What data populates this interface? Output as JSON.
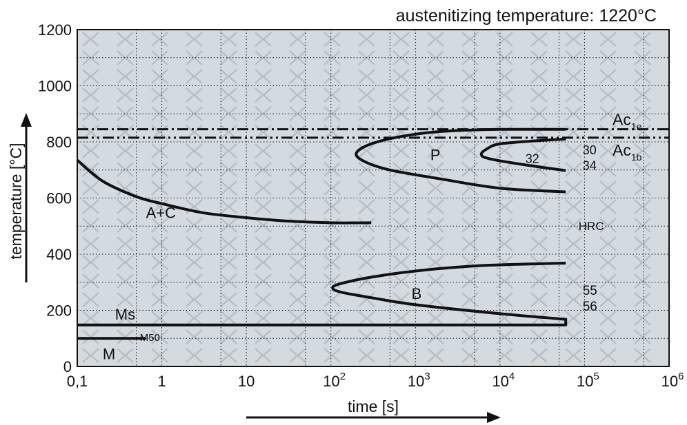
{
  "chart_data": {
    "type": "line",
    "title": "austenitizing temperature: 1220°C",
    "xlabel": "time [s]",
    "ylabel": "temperature [°C]",
    "xscale": "log",
    "xlim": [
      0.1,
      1000000
    ],
    "ylim": [
      0,
      1200
    ],
    "grid": true,
    "x_ticks": [
      {
        "value": 0.1,
        "label": "0,1"
      },
      {
        "value": 1,
        "label": "1"
      },
      {
        "value": 10,
        "label": "10"
      },
      {
        "value": 100,
        "base": "10",
        "exp": "2"
      },
      {
        "value": 1000,
        "base": "10",
        "exp": "3"
      },
      {
        "value": 10000,
        "base": "10",
        "exp": "4"
      },
      {
        "value": 100000,
        "base": "10",
        "exp": "5"
      },
      {
        "value": 1000000,
        "base": "10",
        "exp": "6"
      }
    ],
    "y_ticks": [
      "0",
      "200",
      "400",
      "600",
      "800",
      "1000",
      "1200"
    ],
    "reference_lines": [
      {
        "label_main": "Ac",
        "label_sub": "1e",
        "y": 845
      },
      {
        "label_main": "Ac",
        "label_sub": "1b",
        "y": 815
      }
    ],
    "curves": [
      {
        "points": [
          [
            0.1,
            735
          ],
          [
            0.2,
            660
          ],
          [
            0.5,
            605
          ],
          [
            1,
            580
          ],
          [
            3,
            548
          ],
          [
            10,
            530
          ],
          [
            30,
            518
          ],
          [
            100,
            512
          ],
          [
            300,
            512
          ]
        ]
      },
      {
        "points": [
          [
            60000,
            845
          ],
          [
            10000,
            845
          ],
          [
            2000,
            837
          ],
          [
            700,
            820
          ],
          [
            300,
            793
          ],
          [
            200,
            760
          ],
          [
            250,
            730
          ],
          [
            500,
            700
          ],
          [
            2000,
            668
          ],
          [
            10000,
            635
          ],
          [
            60000,
            622
          ]
        ]
      },
      {
        "points": [
          [
            60000,
            810
          ],
          [
            30000,
            805
          ],
          [
            10000,
            793
          ],
          [
            7000,
            775
          ],
          [
            6000,
            755
          ],
          [
            7500,
            740
          ],
          [
            20000,
            718
          ],
          [
            60000,
            698
          ]
        ]
      },
      {
        "points": [
          [
            60000,
            368
          ],
          [
            30000,
            366
          ],
          [
            5000,
            358
          ],
          [
            1000,
            340
          ],
          [
            300,
            318
          ],
          [
            130,
            295
          ],
          [
            105,
            280
          ],
          [
            130,
            265
          ],
          [
            300,
            245
          ],
          [
            1000,
            220
          ],
          [
            10000,
            188
          ],
          [
            60000,
            168
          ]
        ]
      },
      {
        "points": [
          [
            0.1,
            148
          ],
          [
            60000,
            148
          ],
          [
            60000,
            172
          ]
        ]
      },
      {
        "points": [
          [
            0.1,
            100
          ],
          [
            0.65,
            100
          ]
        ]
      }
    ],
    "annotations": [
      {
        "text": "A+C",
        "x": 0.65,
        "y": 548
      },
      {
        "text": "P",
        "x": 1500,
        "y": 755
      },
      {
        "text": "B",
        "x": 900,
        "y": 260
      },
      {
        "text": "Ms",
        "x": 0.28,
        "y": 186
      },
      {
        "text": "M50",
        "x": 0.55,
        "y": 110
      },
      {
        "text": "M",
        "x": 0.2,
        "y": 45
      },
      {
        "text": "32",
        "x": 20000,
        "y": 745
      },
      {
        "text": "30",
        "x": 95000,
        "y": 775
      },
      {
        "text": "34",
        "x": 95000,
        "y": 720
      },
      {
        "text": "HRC",
        "x": 85000,
        "y": 505
      },
      {
        "text": "55",
        "x": 95000,
        "y": 275
      },
      {
        "text": "56",
        "x": 95000,
        "y": 218
      }
    ],
    "colors": {
      "background": "#d3dae0",
      "grid": "#111111",
      "curve": "#111111",
      "watermark": "#b5bdc4"
    }
  }
}
